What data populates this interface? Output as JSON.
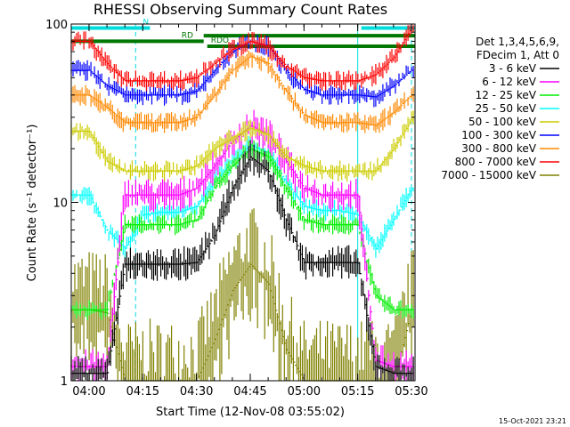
{
  "chart_data": {
    "type": "line",
    "title": "RHESSI Observing Summary Count Rates",
    "xlabel": "Start Time (12-Nov-08 03:55:02)",
    "ylabel": "Count Rate (s⁻¹ detector⁻¹)",
    "y_scale": "log",
    "ylim": [
      1,
      100
    ],
    "y_ticks": [
      {
        "value": 1,
        "label": "1"
      },
      {
        "value": 10,
        "label": "10"
      },
      {
        "value": 100,
        "label": "100"
      }
    ],
    "xlim": [
      "03:55:02",
      "05:31:00"
    ],
    "x_ticks": [
      "04:00",
      "04:15",
      "04:30",
      "04:45",
      "05:00",
      "05:15",
      "05:30"
    ],
    "legend_header": [
      "Det 1,3,4,5,6,9,",
      "FDecim 1, Att 0"
    ],
    "legend_position": "right",
    "timestamp": "15-Oct-2021 23:21",
    "flags": [
      {
        "label": "N",
        "color": "#00dddd",
        "start": "03:55:02",
        "end": "04:17",
        "level": 95
      },
      {
        "label": "",
        "color": "#00dddd",
        "start": "05:16",
        "end": "05:31",
        "level": 95
      },
      {
        "label": "RD",
        "color": "#007700",
        "start": "03:55:02",
        "end": "04:32",
        "level": 80
      },
      {
        "label": "",
        "color": "#007700",
        "start": "04:32",
        "end": "05:31",
        "level": 86
      },
      {
        "label": "RDO",
        "color": "#007700",
        "start": "04:33",
        "end": "05:31",
        "level": 75
      }
    ],
    "vertical_lines": [
      {
        "time": "04:13",
        "style": "dashed",
        "color": "#00dddd"
      },
      {
        "time": "05:15",
        "style": "solid",
        "color": "#00dddd"
      },
      {
        "time": "05:30",
        "style": "dashed",
        "color": "#00dddd"
      }
    ],
    "x": [
      "04:00",
      "04:05",
      "04:10",
      "04:15",
      "04:20",
      "04:25",
      "04:30",
      "04:35",
      "04:40",
      "04:45",
      "04:50",
      "04:55",
      "05:00",
      "05:05",
      "05:10",
      "05:15",
      "05:20",
      "05:25",
      "05:30"
    ],
    "series": [
      {
        "name": "3 - 6 keV",
        "color": "#000000",
        "values": [
          1.1,
          1.1,
          4.5,
          4.5,
          4.5,
          4.5,
          4.6,
          6.5,
          12,
          18,
          15,
          8,
          4.6,
          4.6,
          4.6,
          4.6,
          1.2,
          1.1,
          1.1
        ]
      },
      {
        "name": "6 - 12 keV",
        "color": "#ff00ff",
        "values": [
          1.2,
          1.2,
          11,
          11,
          11,
          11,
          12,
          16,
          22,
          27,
          24,
          17,
          12,
          11,
          11,
          11,
          1.3,
          1.2,
          1.2
        ]
      },
      {
        "name": "12 - 25 keV",
        "color": "#00ee00",
        "values": [
          2.5,
          2.5,
          7.5,
          7.5,
          7.5,
          7.5,
          8,
          12,
          16,
          20,
          18,
          12,
          8,
          7.5,
          7.5,
          7.5,
          3,
          2.5,
          2.5
        ]
      },
      {
        "name": "25 - 50 keV",
        "color": "#00ffff",
        "values": [
          11,
          7,
          5.5,
          8.5,
          8.8,
          8.8,
          9.5,
          13,
          17,
          21,
          19,
          13,
          9.5,
          9,
          9,
          8.5,
          5.5,
          8,
          12
        ]
      },
      {
        "name": "50 - 100 keV",
        "color": "#cccc00",
        "values": [
          25,
          17,
          15,
          15,
          15,
          15,
          16,
          20,
          23,
          26,
          24,
          18,
          16,
          15,
          15,
          15,
          15,
          20,
          29
        ]
      },
      {
        "name": "100 - 300 keV",
        "color": "#0000ff",
        "values": [
          55,
          45,
          40,
          40,
          40,
          40,
          42,
          55,
          70,
          80,
          75,
          55,
          43,
          40,
          40,
          40,
          39,
          45,
          55
        ]
      },
      {
        "name": "300 - 800 keV",
        "color": "#ff8800",
        "values": [
          40,
          34,
          28,
          28,
          28,
          28,
          30,
          40,
          55,
          66,
          60,
          42,
          31,
          28,
          28,
          28,
          27,
          32,
          40
        ]
      },
      {
        "name": "800 - 7000 keV",
        "color": "#ff0000",
        "values": [
          80,
          60,
          48,
          48,
          48,
          48,
          50,
          60,
          72,
          80,
          75,
          58,
          50,
          48,
          48,
          48,
          52,
          65,
          95
        ]
      },
      {
        "name": "7000 - 15000 keV",
        "color": "#808000",
        "values": [
          2.5,
          2.4,
          1,
          1,
          1,
          1,
          1,
          1.7,
          3.2,
          4.5,
          3.5,
          1.5,
          1,
          1,
          1,
          1,
          1,
          1,
          2.5
        ]
      }
    ]
  }
}
